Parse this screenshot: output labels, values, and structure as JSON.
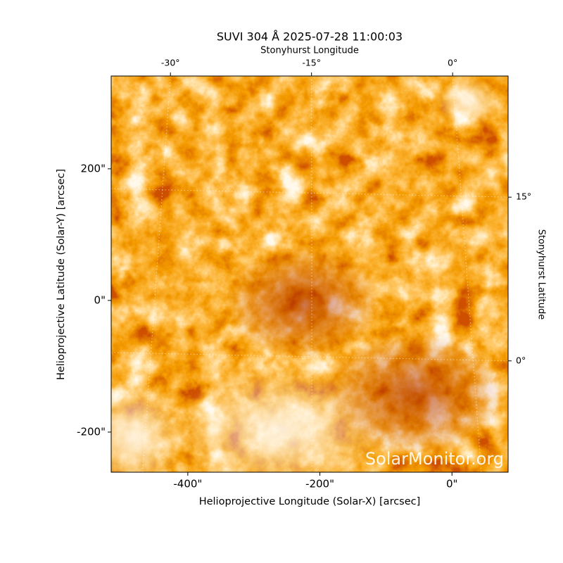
{
  "chart_data": {
    "type": "image",
    "title": "SUVI 304 Å 2025-07-28 11:00:03",
    "xlabel": "Helioprojective Longitude (Solar-X) [arcsec]",
    "ylabel": "Helioprojective Latitude (Solar-Y) [arcsec]",
    "x2label": "Stonyhurst Longitude",
    "y2label": "Stonyhurst Latitude",
    "watermark": "SolarMonitor.org",
    "xlim": [
      -516,
      85
    ],
    "ylim": [
      -261,
      341
    ],
    "xticks": [
      {
        "value": -400,
        "label": "-400\""
      },
      {
        "value": -200,
        "label": "-200\""
      },
      {
        "value": 0,
        "label": "0\""
      }
    ],
    "yticks": [
      {
        "value": -200,
        "label": "-200\""
      },
      {
        "value": 0,
        "label": "0\""
      },
      {
        "value": 200,
        "label": "200\""
      }
    ],
    "x2lim": [
      -36.3,
      5.9
    ],
    "x2ticks": [
      {
        "value": -30,
        "label": "-30°"
      },
      {
        "value": -15,
        "label": "-15°"
      },
      {
        "value": 0,
        "label": "0°"
      }
    ],
    "y2lim": [
      -10.2,
      26.1
    ],
    "y2ticks": [
      {
        "value": 0,
        "label": "0°"
      },
      {
        "value": 15,
        "label": "15°"
      }
    ],
    "grid": true
  }
}
